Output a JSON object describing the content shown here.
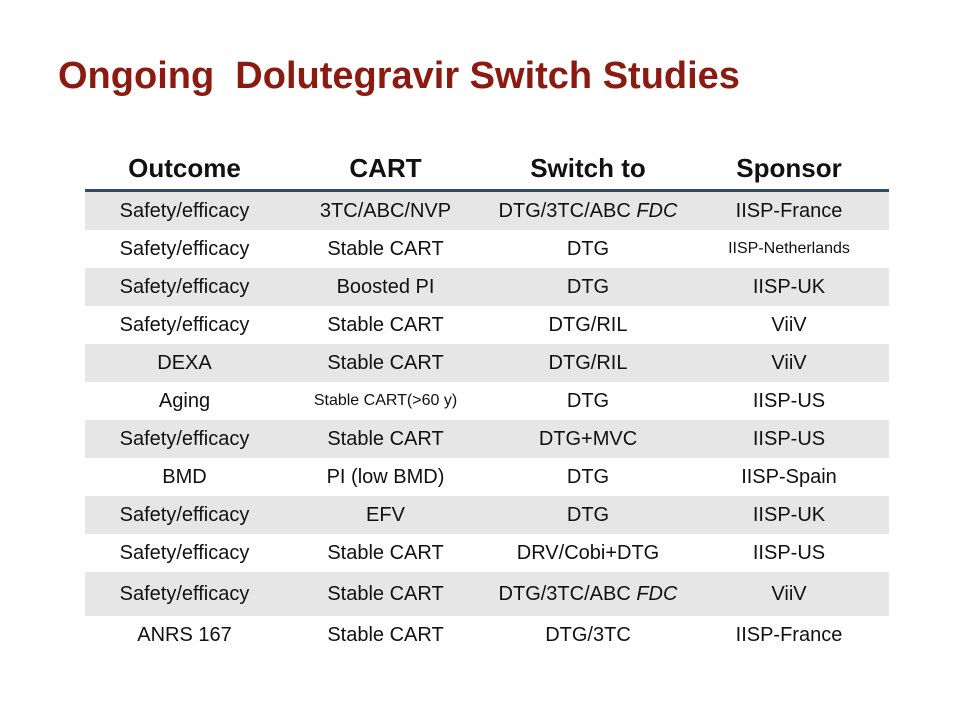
{
  "title": "Ongoing  Dolutegravir Switch Studies",
  "table": {
    "headers": [
      "Outcome",
      "CART",
      "Switch to",
      "Sponsor"
    ],
    "rows": [
      {
        "outcome": "Safety/efficacy",
        "cart": "3TC/ABC/NVP",
        "switch_to": "DTG/3TC/ABC",
        "switch_to_suffix": "FDC",
        "sponsor": "IISP-France"
      },
      {
        "outcome": "Safety/efficacy",
        "cart": "Stable CART",
        "switch_to": "DTG",
        "switch_to_suffix": "",
        "sponsor": "IISP-Netherlands"
      },
      {
        "outcome": "Safety/efficacy",
        "cart": "Boosted PI",
        "switch_to": "DTG",
        "switch_to_suffix": "",
        "sponsor": "IISP-UK"
      },
      {
        "outcome": "Safety/efficacy",
        "cart": "Stable CART",
        "switch_to": "DTG/RIL",
        "switch_to_suffix": "",
        "sponsor": "ViiV"
      },
      {
        "outcome": "DEXA",
        "cart": "Stable CART",
        "switch_to": "DTG/RIL",
        "switch_to_suffix": "",
        "sponsor": "ViiV"
      },
      {
        "outcome": "Aging",
        "cart": "Stable CART(>60 y)",
        "switch_to": "DTG",
        "switch_to_suffix": "",
        "sponsor": "IISP-US"
      },
      {
        "outcome": "Safety/efficacy",
        "cart": "Stable CART",
        "switch_to": "DTG+MVC",
        "switch_to_suffix": "",
        "sponsor": "IISP-US"
      },
      {
        "outcome": "BMD",
        "cart": "PI (low BMD)",
        "switch_to": "DTG",
        "switch_to_suffix": "",
        "sponsor": "IISP-Spain"
      },
      {
        "outcome": "Safety/efficacy",
        "cart": "EFV",
        "switch_to": "DTG",
        "switch_to_suffix": "",
        "sponsor": "IISP-UK"
      },
      {
        "outcome": "Safety/efficacy",
        "cart": "Stable CART",
        "switch_to": "DRV/Cobi+DTG",
        "switch_to_suffix": "",
        "sponsor": "IISP-US"
      },
      {
        "outcome": "Safety/efficacy",
        "cart": "Stable CART",
        "switch_to": "DTG/3TC/ABC",
        "switch_to_suffix": "FDC",
        "sponsor": "ViiV"
      },
      {
        "outcome": "ANRS 167",
        "cart": "Stable CART",
        "switch_to": "DTG/3TC",
        "switch_to_suffix": "",
        "sponsor": "IISP-France"
      }
    ]
  },
  "colors": {
    "title": "#8b1a10",
    "header_rule": "#2f4a6a",
    "shaded_row": "#e6e6e6",
    "text": "#111111"
  }
}
